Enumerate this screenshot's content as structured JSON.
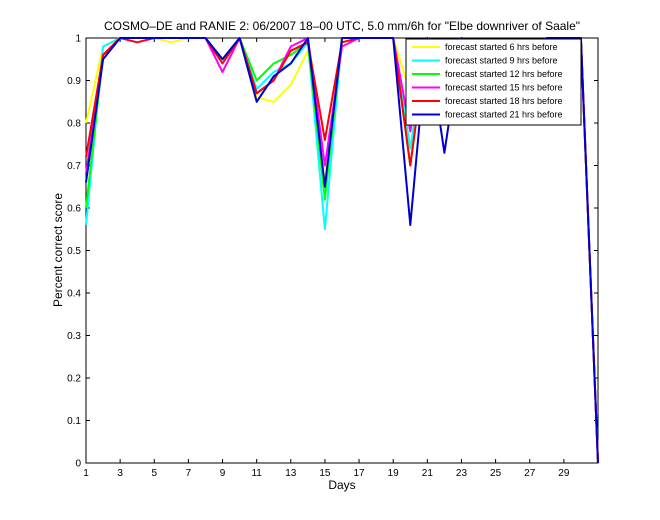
{
  "chart_data": {
    "type": "line",
    "title": "COSMO–DE and RANIE 2: 06/2007 18–00 UTC, 5.0 mm/6h for \"Elbe downriver of Saale\"",
    "xlabel": "Days",
    "ylabel": "Percent correct score",
    "xlim": [
      1,
      31
    ],
    "ylim": [
      0,
      1
    ],
    "xticks": [
      1,
      3,
      5,
      7,
      9,
      11,
      13,
      15,
      17,
      19,
      21,
      23,
      25,
      27,
      29
    ],
    "xtick_labels": [
      "1",
      "3",
      "5",
      "7",
      "9",
      "11",
      "13",
      "15",
      "17",
      "19",
      "21",
      "23",
      "25",
      "27",
      "29"
    ],
    "yticks": [
      0,
      0.1,
      0.2,
      0.3,
      0.4,
      0.5,
      0.6,
      0.7,
      0.8,
      0.9,
      1
    ],
    "ytick_labels": [
      "0",
      "0.1",
      "0.2",
      "0.3",
      "0.4",
      "0.5",
      "0.6",
      "0.7",
      "0.8",
      "0.9",
      "1"
    ],
    "grid": false,
    "legend_position": "top-right",
    "x": [
      1,
      2,
      3,
      4,
      5,
      6,
      7,
      8,
      9,
      10,
      11,
      12,
      13,
      14,
      15,
      16,
      17,
      18,
      19,
      20,
      21,
      22,
      23,
      24,
      25,
      26,
      27,
      28,
      29,
      30,
      31
    ],
    "series": [
      {
        "name": "forecast started 6 hrs before",
        "color": "#ffff00",
        "values": [
          0.8,
          0.98,
          1.0,
          1.0,
          1.0,
          0.99,
          1.0,
          1.0,
          0.94,
          1.0,
          0.86,
          0.85,
          0.89,
          0.97,
          0.66,
          0.99,
          1.0,
          1.0,
          1.0,
          0.87,
          1.0,
          0.91,
          1.0,
          0.9,
          0.95,
          0.97,
          0.98,
          0.99,
          0.97,
          1.0,
          0.0
        ]
      },
      {
        "name": "forecast started 9 hrs before",
        "color": "#00ffff",
        "values": [
          0.56,
          0.98,
          1.0,
          1.0,
          1.0,
          1.0,
          1.0,
          1.0,
          0.95,
          1.0,
          0.88,
          0.92,
          0.94,
          0.99,
          0.55,
          1.0,
          1.0,
          1.0,
          1.0,
          0.74,
          1.0,
          0.96,
          0.99,
          0.9,
          0.89,
          0.96,
          0.97,
          1.0,
          0.99,
          1.0,
          0.0
        ]
      },
      {
        "name": "forecast started 12 hrs before",
        "color": "#00ff00",
        "values": [
          0.6,
          0.96,
          1.0,
          1.0,
          1.0,
          1.0,
          1.0,
          1.0,
          0.95,
          1.0,
          0.9,
          0.94,
          0.96,
          0.99,
          0.62,
          1.0,
          1.0,
          1.0,
          1.0,
          0.7,
          1.0,
          0.96,
          1.0,
          0.91,
          0.94,
          0.97,
          0.98,
          1.0,
          0.99,
          1.0,
          0.0
        ]
      },
      {
        "name": "forecast started 15 hrs before",
        "color": "#ff00ff",
        "values": [
          0.68,
          0.96,
          1.0,
          1.0,
          1.0,
          1.0,
          1.0,
          1.0,
          0.92,
          1.0,
          0.87,
          0.9,
          0.98,
          1.0,
          0.7,
          0.98,
          1.0,
          1.0,
          1.0,
          0.78,
          1.0,
          0.95,
          1.0,
          0.91,
          0.95,
          0.96,
          0.97,
          0.99,
          0.99,
          1.0,
          0.0
        ]
      },
      {
        "name": "forecast started 18 hrs before",
        "color": "#ff0000",
        "values": [
          0.72,
          0.96,
          1.0,
          0.99,
          1.0,
          1.0,
          1.0,
          1.0,
          0.94,
          1.0,
          0.87,
          0.9,
          0.97,
          0.99,
          0.76,
          0.99,
          1.0,
          1.0,
          1.0,
          0.7,
          1.0,
          0.95,
          1.0,
          0.91,
          0.95,
          0.98,
          0.96,
          1.0,
          0.99,
          1.0,
          0.0
        ]
      },
      {
        "name": "forecast started 21 hrs before",
        "color": "#0000cc",
        "values": [
          0.66,
          0.95,
          1.0,
          1.0,
          1.0,
          1.0,
          1.0,
          1.0,
          0.95,
          1.0,
          0.85,
          0.91,
          0.94,
          1.0,
          0.65,
          1.0,
          1.0,
          1.0,
          1.0,
          0.56,
          1.0,
          0.73,
          1.0,
          0.9,
          0.96,
          0.98,
          0.98,
          1.0,
          1.0,
          1.0,
          0.0
        ]
      }
    ]
  }
}
